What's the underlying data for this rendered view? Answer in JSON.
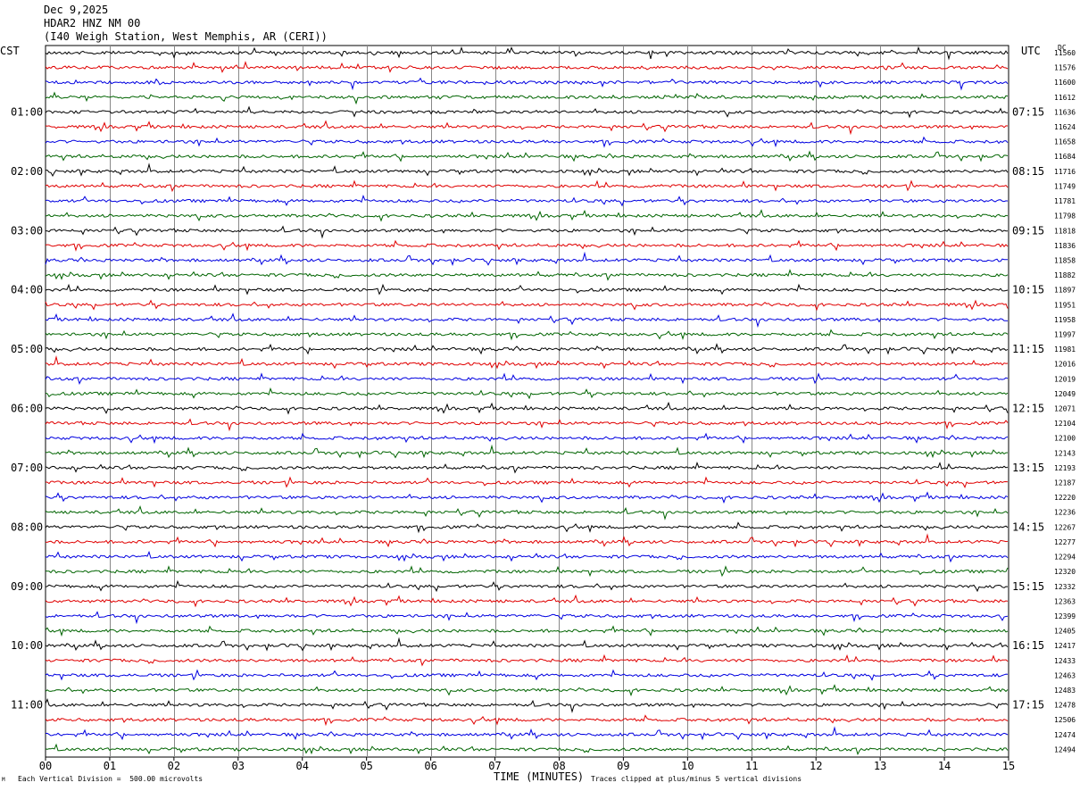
{
  "header": {
    "date": "Dec 9,2025",
    "station": "HDAR2 HNZ NM 00",
    "location": "(I40 Weigh Station, West Memphis, AR (CERI))"
  },
  "left_tz": "CST",
  "right_tz": "UTC",
  "dc_label": "DC",
  "footer": {
    "xlabel": "TIME (MINUTES)",
    "scale_note": "Each Vertical Division =  500.00 microvolts",
    "clip_note": "Traces clipped at plus/minus 5 vertical divisions",
    "corner": "M"
  },
  "chart_data": {
    "type": "line",
    "xlabel": "TIME (MINUTES)",
    "xlim": [
      0,
      15
    ],
    "x_ticks": [
      "00",
      "01",
      "02",
      "03",
      "04",
      "05",
      "06",
      "07",
      "08",
      "09",
      "10",
      "11",
      "12",
      "13",
      "14",
      "15"
    ],
    "trace_colors": [
      "#000000",
      "#e00000",
      "#0000e0",
      "#006400"
    ],
    "left_hour_labels": [
      "01:00",
      "02:00",
      "03:00",
      "04:00",
      "05:00",
      "06:00",
      "07:00",
      "08:00",
      "09:00",
      "10:00",
      "11:00"
    ],
    "right_hour_labels": [
      "07:15",
      "08:15",
      "09:15",
      "10:15",
      "11:15",
      "12:15",
      "13:15",
      "14:15",
      "15:15",
      "16:15",
      "17:15"
    ],
    "dc_values": [
      "11560",
      "11576",
      "11600",
      "11612",
      "11636",
      "11624",
      "11658",
      "11684",
      "11716",
      "11749",
      "11781",
      "11798",
      "11818",
      "11836",
      "11858",
      "11882",
      "11897",
      "11951",
      "11958",
      "11997",
      "11981",
      "12016",
      "12019",
      "12049",
      "12071",
      "12104",
      "12100",
      "12143",
      "12193",
      "12187",
      "12220",
      "12236",
      "12267",
      "12277",
      "12294",
      "12320",
      "12332",
      "12363",
      "12399",
      "12405",
      "12417",
      "12433",
      "12463",
      "12483",
      "12478",
      "12506",
      "12474",
      "12494"
    ]
  }
}
